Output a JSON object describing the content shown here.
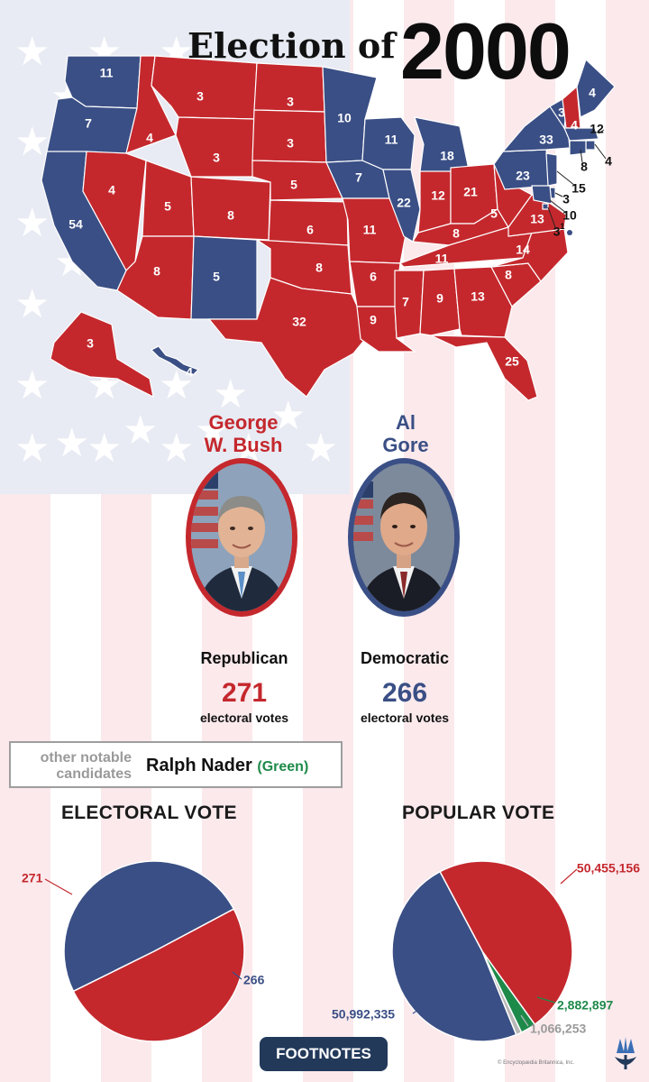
{
  "title": {
    "prefix": "Election of",
    "year": "2000"
  },
  "colors": {
    "republican": "#c4282d",
    "democratic": "#3a4f85",
    "green": "#1e8a4a",
    "other": "#9a9a9a"
  },
  "map": {
    "states": [
      {
        "name": "WA",
        "ev": "11",
        "party": "D"
      },
      {
        "name": "OR",
        "ev": "7",
        "party": "D"
      },
      {
        "name": "CA",
        "ev": "54",
        "party": "D"
      },
      {
        "name": "ID",
        "ev": "4",
        "party": "R"
      },
      {
        "name": "NV",
        "ev": "4",
        "party": "R"
      },
      {
        "name": "MT",
        "ev": "3",
        "party": "R"
      },
      {
        "name": "WY",
        "ev": "3",
        "party": "R"
      },
      {
        "name": "UT",
        "ev": "5",
        "party": "R"
      },
      {
        "name": "AZ",
        "ev": "8",
        "party": "R"
      },
      {
        "name": "CO",
        "ev": "8",
        "party": "R"
      },
      {
        "name": "NM",
        "ev": "5",
        "party": "D"
      },
      {
        "name": "ND",
        "ev": "3",
        "party": "R"
      },
      {
        "name": "SD",
        "ev": "3",
        "party": "R"
      },
      {
        "name": "NE",
        "ev": "5",
        "party": "R"
      },
      {
        "name": "KS",
        "ev": "6",
        "party": "R"
      },
      {
        "name": "OK",
        "ev": "8",
        "party": "R"
      },
      {
        "name": "TX",
        "ev": "32",
        "party": "R"
      },
      {
        "name": "MN",
        "ev": "10",
        "party": "D"
      },
      {
        "name": "IA",
        "ev": "7",
        "party": "D"
      },
      {
        "name": "MO",
        "ev": "11",
        "party": "R"
      },
      {
        "name": "AR",
        "ev": "6",
        "party": "R"
      },
      {
        "name": "LA",
        "ev": "9",
        "party": "R"
      },
      {
        "name": "WI",
        "ev": "11",
        "party": "D"
      },
      {
        "name": "IL",
        "ev": "22",
        "party": "D"
      },
      {
        "name": "MI",
        "ev": "18",
        "party": "D"
      },
      {
        "name": "IN",
        "ev": "12",
        "party": "R"
      },
      {
        "name": "OH",
        "ev": "21",
        "party": "R"
      },
      {
        "name": "KY",
        "ev": "8",
        "party": "R"
      },
      {
        "name": "TN",
        "ev": "11",
        "party": "R"
      },
      {
        "name": "MS",
        "ev": "7",
        "party": "R"
      },
      {
        "name": "AL",
        "ev": "9",
        "party": "R"
      },
      {
        "name": "GA",
        "ev": "13",
        "party": "R"
      },
      {
        "name": "FL",
        "ev": "25",
        "party": "R"
      },
      {
        "name": "SC",
        "ev": "8",
        "party": "R"
      },
      {
        "name": "NC",
        "ev": "14",
        "party": "R"
      },
      {
        "name": "VA",
        "ev": "13",
        "party": "R"
      },
      {
        "name": "WV",
        "ev": "5",
        "party": "R"
      },
      {
        "name": "PA",
        "ev": "23",
        "party": "D"
      },
      {
        "name": "NY",
        "ev": "33",
        "party": "D"
      },
      {
        "name": "VT",
        "ev": "3",
        "party": "D"
      },
      {
        "name": "NH",
        "ev": "4",
        "party": "R"
      },
      {
        "name": "ME",
        "ev": "4",
        "party": "D"
      },
      {
        "name": "MA",
        "ev": "12",
        "party": "D"
      },
      {
        "name": "RI",
        "ev": "4",
        "party": "D"
      },
      {
        "name": "CT",
        "ev": "8",
        "party": "D"
      },
      {
        "name": "NJ",
        "ev": "15",
        "party": "D"
      },
      {
        "name": "DE",
        "ev": "3",
        "party": "D"
      },
      {
        "name": "MD",
        "ev": "10",
        "party": "D"
      },
      {
        "name": "DC",
        "ev": "3",
        "ev_note": "1",
        "party": "D"
      },
      {
        "name": "AK",
        "ev": "3",
        "party": "R"
      },
      {
        "name": "HI",
        "ev": "4",
        "party": "D"
      }
    ]
  },
  "candidates": {
    "bush": {
      "name_line1": "George",
      "name_line2": "W. Bush",
      "party": "Republican",
      "ev": "271",
      "ev_label": "electoral votes"
    },
    "gore": {
      "name_line1": "Al",
      "name_line2": "Gore",
      "party": "Democratic",
      "ev": "266",
      "ev_label": "electoral votes"
    }
  },
  "other_candidates": {
    "label_line1": "other notable",
    "label_line2": "candidates",
    "name": "Ralph Nader",
    "party": "(Green)"
  },
  "chart_data": [
    {
      "type": "pie",
      "title": "ELECTORAL VOTE",
      "slices": [
        {
          "label": "271",
          "value": 271,
          "color": "#c4282d"
        },
        {
          "label": "266",
          "value": 266,
          "color": "#3a4f85"
        }
      ]
    },
    {
      "type": "pie",
      "title": "POPULAR VOTE",
      "slices": [
        {
          "label": "50,455,156",
          "value": 50455156,
          "color": "#c4282d"
        },
        {
          "label": "2,882,897",
          "value": 2882897,
          "color": "#1e8a4a"
        },
        {
          "label": "1,066,253",
          "value": 1066253,
          "color": "#b8b8b8"
        },
        {
          "label": "50,992,335",
          "value": 50992335,
          "color": "#3a4f85"
        }
      ]
    }
  ],
  "footer": {
    "button": "FOOTNOTES",
    "credit": "© Encyclopædia Britannica, Inc."
  }
}
